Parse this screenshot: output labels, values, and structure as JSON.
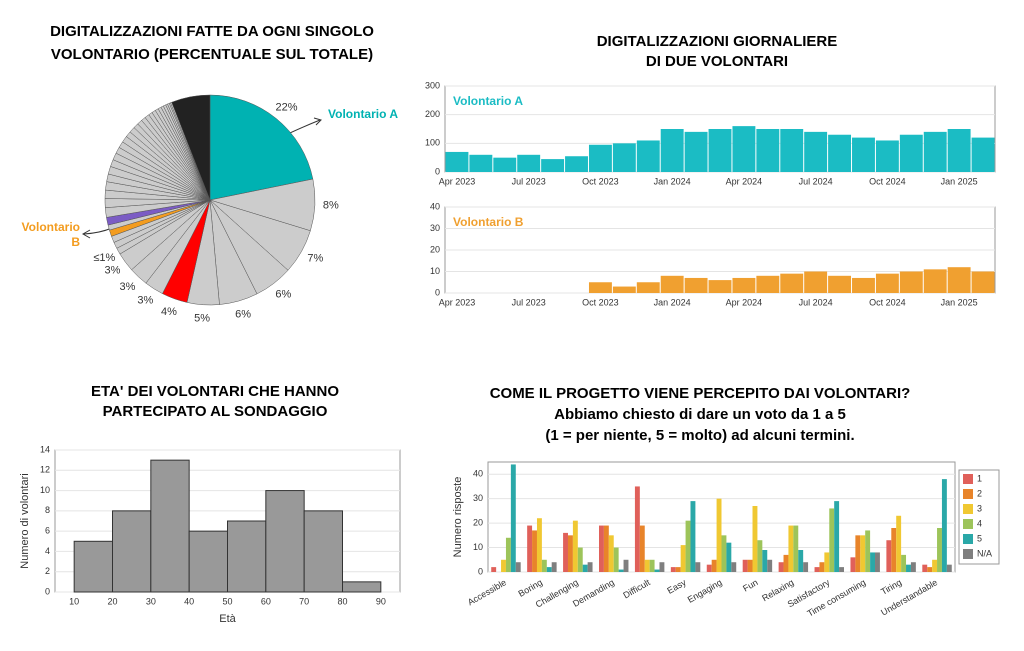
{
  "chart_data": [
    {
      "type": "pie",
      "title": [
        "DIGITALIZZAZIONI FATTE DA OGNI SINGOLO",
        "VOLONTARIO (PERCENTUALE SUL TOTALE)"
      ],
      "values": [
        22,
        8,
        7,
        6,
        6,
        5,
        4,
        3,
        3,
        3,
        1,
        1,
        1,
        1,
        0.8,
        1.2,
        1.5,
        1.4,
        1.3,
        1.3,
        1.2,
        1.2,
        1.1,
        1.1,
        1,
        1,
        1,
        0.9,
        0.9,
        0.8,
        0.8,
        0.7,
        0.7,
        0.6,
        0.6,
        0.5,
        0.5,
        0.4,
        0.4,
        0.3,
        0.3,
        0.2,
        0.2,
        6
      ],
      "value_labels": [
        "22%",
        "8%",
        "7%",
        "6%",
        "6%",
        "5%",
        "4%",
        "3%",
        "3%",
        "3%",
        "≤1%",
        null,
        null,
        null,
        null,
        null,
        null,
        null,
        null,
        null,
        null,
        null,
        null,
        null,
        null,
        null,
        null,
        null,
        null,
        null,
        null,
        null,
        null,
        null,
        null,
        null,
        null,
        null,
        null,
        null,
        null,
        null,
        null,
        null
      ],
      "colors": [
        "#00b2b2",
        "#cccccc",
        "#cccccc",
        "#cccccc",
        "#cccccc",
        "#cccccc",
        "#ff0000",
        "#cccccc",
        "#cccccc",
        "#cccccc",
        "#cccccc",
        "#cccccc",
        "#cccccc",
        "#f39c1f",
        "#cccccc",
        "#7b5cc4",
        "#cccccc",
        "#cccccc",
        "#cccccc",
        "#cccccc",
        "#cccccc",
        "#cccccc",
        "#cccccc",
        "#cccccc",
        "#cccccc",
        "#cccccc",
        "#cccccc",
        "#cccccc",
        "#cccccc",
        "#cccccc",
        "#cccccc",
        "#cccccc",
        "#cccccc",
        "#cccccc",
        "#cccccc",
        "#cccccc",
        "#cccccc",
        "#cccccc",
        "#cccccc",
        "#cccccc",
        "#cccccc",
        "#cccccc",
        "#cccccc",
        "#222222"
      ],
      "annotations": [
        "Volontario A",
        "Volontario B"
      ]
    },
    {
      "type": "bar",
      "title": [
        "DIGITALIZZAZIONI GIORNALIERE",
        "DI DUE VOLONTARI"
      ],
      "categories": [
        "Apr 2023",
        null,
        null,
        "Jul 2023",
        null,
        null,
        "Oct 2023",
        null,
        null,
        "Jan 2024",
        null,
        null,
        "Apr 2024",
        null,
        null,
        "Jul 2024",
        null,
        null,
        "Oct 2024",
        null,
        null,
        "Jan 2025",
        null
      ],
      "series": [
        {
          "name": "Volontario A",
          "color": "#1bbcc4",
          "values": [
            70,
            60,
            50,
            60,
            45,
            55,
            95,
            100,
            110,
            150,
            140,
            150,
            160,
            150,
            150,
            140,
            130,
            120,
            110,
            130,
            140,
            150,
            120
          ]
        }
      ],
      "ylim": [
        0,
        300
      ],
      "yticks": [
        0,
        100,
        200,
        300
      ],
      "grid": true
    },
    {
      "type": "bar",
      "categories": [
        "Apr 2023",
        null,
        null,
        "Jul 2023",
        null,
        null,
        "Oct 2023",
        null,
        null,
        "Jan 2024",
        null,
        null,
        "Apr 2024",
        null,
        null,
        "Jul 2024",
        null,
        null,
        "Oct 2024",
        null,
        null,
        "Jan 2025",
        null
      ],
      "series": [
        {
          "name": "Volontario B",
          "color": "#f0a030",
          "values": [
            0,
            0,
            0,
            0,
            0,
            0,
            5,
            3,
            5,
            8,
            7,
            6,
            7,
            8,
            9,
            10,
            8,
            7,
            9,
            10,
            11,
            12,
            10
          ]
        }
      ],
      "ylim": [
        0,
        40
      ],
      "yticks": [
        0,
        10,
        20,
        30,
        40
      ],
      "grid": true
    },
    {
      "type": "histogram",
      "title": [
        "ETA' DEI VOLONTARI CHE HANNO",
        "PARTECIPATO AL SONDAGGIO"
      ],
      "bins": [
        10,
        20,
        30,
        40,
        50,
        60,
        70,
        80,
        90
      ],
      "values": [
        5,
        8,
        13,
        6,
        7,
        10,
        8,
        1
      ],
      "color": "#999999",
      "xlabel": "Età",
      "ylabel": "Numero di volontari",
      "xlim": [
        5,
        95
      ],
      "xticks": [
        10,
        20,
        30,
        40,
        50,
        60,
        70,
        80,
        90
      ],
      "ylim": [
        0,
        14
      ],
      "yticks": [
        0,
        2,
        4,
        6,
        8,
        10,
        12,
        14
      ],
      "grid": true
    },
    {
      "type": "grouped_bar",
      "title": [
        "COME IL PROGETTO VIENE PERCEPITO DAI VOLONTARI?"
      ],
      "subtitle": [
        "Abbiamo chiesto di dare un voto da 1 a 5",
        "(1 = per niente, 5 = molto) ad alcuni termini."
      ],
      "categories": [
        "Accessible",
        "Boring",
        "Challenging",
        "Demanding",
        "Difficult",
        "Easy",
        "Engaging",
        "Fun",
        "Relaxing",
        "Satisfactory",
        "Time consuming",
        "Tiring",
        "Understandable"
      ],
      "series": [
        {
          "name": "1",
          "color": "#e0605a",
          "values": [
            2,
            19,
            16,
            19,
            35,
            2,
            3,
            5,
            4,
            2,
            6,
            13,
            3
          ]
        },
        {
          "name": "2",
          "color": "#e8842a",
          "values": [
            0,
            17,
            15,
            19,
            19,
            2,
            5,
            5,
            7,
            4,
            15,
            18,
            2
          ]
        },
        {
          "name": "3",
          "color": "#f0c832",
          "values": [
            5,
            22,
            21,
            15,
            5,
            11,
            30,
            27,
            19,
            8,
            15,
            23,
            5
          ]
        },
        {
          "name": "4",
          "color": "#9dc45a",
          "values": [
            14,
            5,
            10,
            10,
            5,
            21,
            15,
            13,
            19,
            26,
            17,
            7,
            18
          ]
        },
        {
          "name": "5",
          "color": "#2aa8a8",
          "values": [
            44,
            2,
            3,
            1,
            1,
            29,
            12,
            9,
            9,
            29,
            8,
            3,
            38
          ]
        },
        {
          "name": "N/A",
          "color": "#7f7f7f",
          "values": [
            4,
            4,
            4,
            5,
            4,
            4,
            4,
            5,
            4,
            2,
            8,
            4,
            3
          ]
        }
      ],
      "ylabel": "Numero risposte",
      "ylim": [
        0,
        45
      ],
      "yticks": [
        0,
        10,
        20,
        30,
        40
      ],
      "grid": true,
      "legend": "right"
    }
  ]
}
